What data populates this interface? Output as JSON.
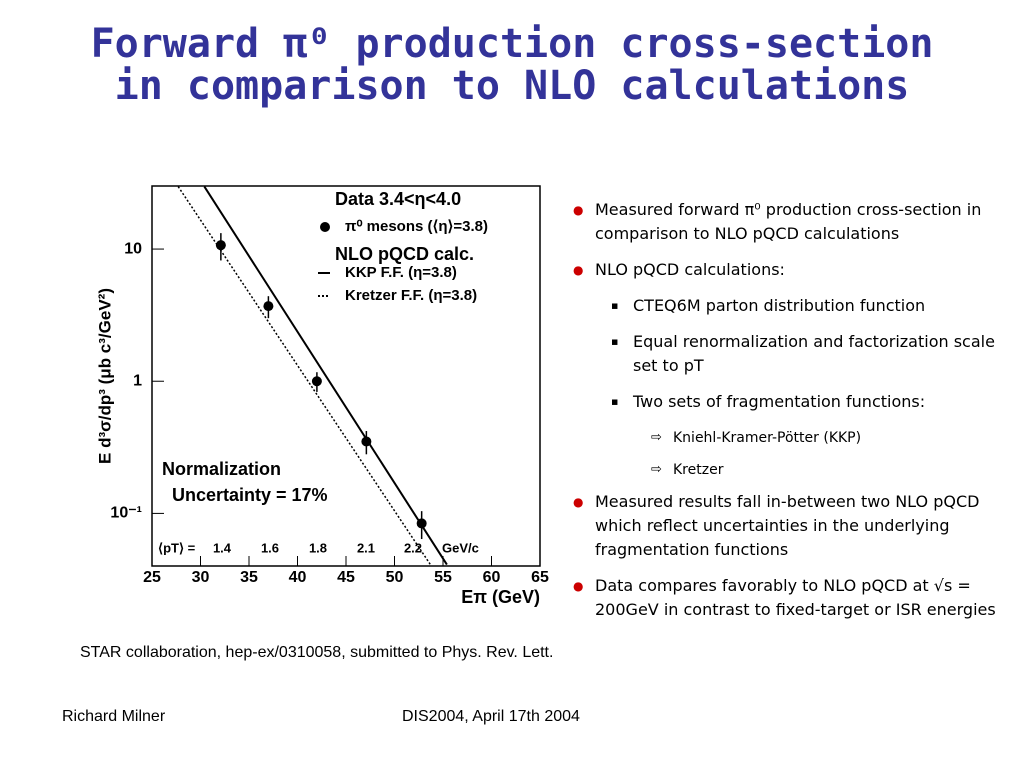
{
  "header": {
    "title_line1": "Forward π⁰ production cross-section",
    "title_line2": "in comparison to NLO calculations"
  },
  "chart_data": {
    "type": "scatter",
    "log_y": true,
    "y_label": "E d³σ/dp³ (μb c³/GeV²)",
    "x_label": "Eπ (GeV)",
    "xlim": [
      25,
      65
    ],
    "xticks": [
      25,
      30,
      35,
      40,
      45,
      50,
      55,
      60,
      65
    ],
    "ylim": [
      0.04,
      30
    ],
    "yticks": [
      10,
      1,
      {
        "value": 0.1,
        "label": "10⁻¹"
      }
    ],
    "legend_titles": [
      "Data 3.4<η<4.0",
      "NLO pQCD calc."
    ],
    "series": [
      {
        "name": "π⁰ mesons (⟨η⟩=3.8)",
        "style": "points",
        "color": "#000000",
        "x": [
          32.1,
          37.0,
          42.0,
          47.1,
          52.8
        ],
        "values": [
          10.7,
          3.7,
          1.0,
          0.35,
          0.084
        ],
        "errors": [
          2.5,
          0.7,
          0.17,
          0.07,
          0.02
        ]
      },
      {
        "name": "KKP F.F. (η=3.8)",
        "style": "solid",
        "color": "#000000",
        "x": [
          30.4,
          55.4
        ],
        "values": [
          29.7,
          0.041
        ]
      },
      {
        "name": "Kretzer F.F. (η=3.8)",
        "style": "dotted",
        "color": "#000000",
        "x": [
          27.7,
          53.7
        ],
        "values": [
          29.7,
          0.041
        ]
      }
    ],
    "annotation_line1": "Normalization",
    "annotation_line2": "Uncertainty = 17%",
    "pt_label": "⟨pT⟩ =",
    "pt_values": [
      "1.4",
      "1.6",
      "1.8",
      "2.1",
      "2.2"
    ],
    "pt_unit": "GeV/c"
  },
  "bullets": [
    {
      "level": 0,
      "text": "Measured forward π⁰ production cross-section in comparison to NLO pQCD calculations"
    },
    {
      "level": 0,
      "text": "NLO pQCD calculations:"
    },
    {
      "level": 1,
      "text": "CTEQ6M parton distribution function"
    },
    {
      "level": 1,
      "text": "Equal renormalization and factorization scale set to pT"
    },
    {
      "level": 1,
      "text": "Two sets of fragmentation functions:"
    },
    {
      "level": 2,
      "text": "Kniehl-Kramer-Pötter (KKP)"
    },
    {
      "level": 2,
      "text": "Kretzer"
    },
    {
      "level": 0,
      "text": "Measured results fall in-between two NLO pQCD which reflect uncertainties in the underlying fragmentation functions"
    },
    {
      "level": 0,
      "text": "Data compares favorably to NLO pQCD at √s = 200GeV in contrast to fixed-target or ISR energies"
    }
  ],
  "citation": "STAR collaboration, hep-ex/0310058, submitted to Phys. Rev. Lett.",
  "footer": {
    "author": "Richard Milner",
    "event": "DIS2004, April 17th 2004"
  }
}
